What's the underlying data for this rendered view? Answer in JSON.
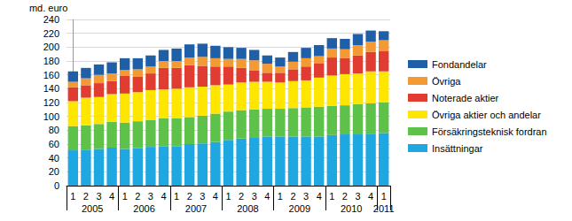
{
  "chart_data": {
    "type": "bar",
    "stacked": true,
    "grid": true,
    "legend": "right",
    "ylabel": "md. euro",
    "categories": [
      "1",
      "2",
      "3",
      "4",
      "1",
      "2",
      "3",
      "4",
      "1",
      "2",
      "3",
      "4",
      "1",
      "2",
      "3",
      "4",
      "1",
      "2",
      "3",
      "4",
      "1",
      "2",
      "3",
      "4",
      "1"
    ],
    "years": [
      "2005",
      "2006",
      "2007",
      "2008",
      "2009",
      "2010",
      "2011"
    ],
    "ylim": [
      0,
      240
    ],
    "yticks": [
      0,
      20,
      40,
      60,
      80,
      100,
      120,
      140,
      160,
      180,
      200,
      220,
      240
    ],
    "series": [
      {
        "name": "Insättningar",
        "color": "#1ea7e1",
        "values": [
          51,
          52,
          53,
          55,
          53,
          54,
          56,
          57,
          57,
          60,
          61,
          63,
          66,
          68,
          70,
          71,
          71,
          71,
          71,
          71,
          73,
          74,
          74,
          75,
          76
        ]
      },
      {
        "name": "Försäkringsteknisk fordran",
        "color": "#5ec24a",
        "values": [
          35,
          35,
          36,
          37,
          38,
          39,
          39,
          40,
          40,
          39,
          40,
          41,
          41,
          41,
          40,
          40,
          40,
          41,
          42,
          43,
          42,
          42,
          44,
          44,
          44
        ]
      },
      {
        "name": "Övriga aktier och andelar",
        "color": "#ffe600",
        "values": [
          36,
          40,
          39,
          40,
          42,
          42,
          43,
          42,
          43,
          43,
          42,
          41,
          39,
          40,
          40,
          39,
          38,
          39,
          39,
          42,
          44,
          45,
          44,
          46,
          45
        ]
      },
      {
        "name": "Noterade aktier",
        "color": "#e03c31",
        "values": [
          20,
          18,
          20,
          19,
          26,
          22,
          24,
          31,
          30,
          32,
          30,
          27,
          26,
          21,
          16,
          13,
          14,
          17,
          20,
          21,
          26,
          23,
          26,
          28,
          29
        ]
      },
      {
        "name": "Övriga",
        "color": "#f49a35",
        "values": [
          8,
          10,
          12,
          11,
          8,
          11,
          10,
          10,
          10,
          11,
          13,
          12,
          11,
          13,
          15,
          13,
          9,
          11,
          12,
          10,
          13,
          13,
          15,
          15,
          16
        ]
      },
      {
        "name": "Fondandelar",
        "color": "#1f5fa8",
        "values": [
          15,
          15,
          15,
          16,
          17,
          16,
          16,
          16,
          18,
          19,
          19,
          18,
          17,
          16,
          15,
          12,
          13,
          14,
          15,
          16,
          15,
          15,
          16,
          16,
          13
        ]
      }
    ]
  }
}
